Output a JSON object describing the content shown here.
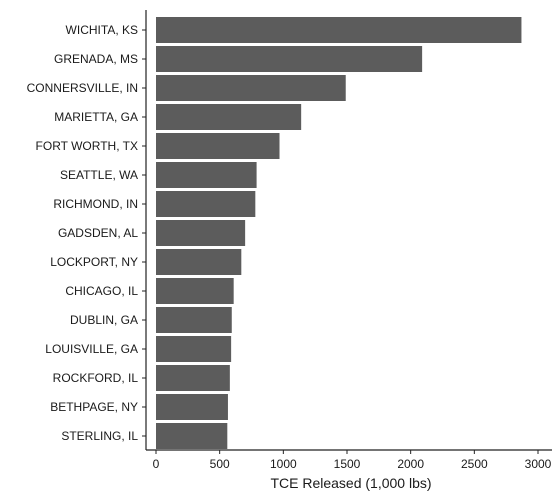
{
  "chart_data": {
    "type": "bar",
    "orientation": "horizontal",
    "title": "",
    "xlabel": "TCE Released (1,000 lbs)",
    "ylabel": "",
    "categories": [
      "WICHITA, KS",
      "GRENADA, MS",
      "CONNERSVILLE, IN",
      "MARIETTA, GA",
      "FORT WORTH, TX",
      "SEATTLE, WA",
      "RICHMOND, IN",
      "GADSDEN, AL",
      "LOCKPORT, NY",
      "CHICAGO, IL",
      "DUBLIN, GA",
      "LOUISVILLE, GA",
      "ROCKFORD, IL",
      "BETHPAGE, NY",
      "STERLING, IL"
    ],
    "values": [
      2870,
      2090,
      1490,
      1140,
      970,
      790,
      780,
      700,
      670,
      610,
      595,
      590,
      580,
      565,
      560
    ],
    "xlim": [
      0,
      3000
    ],
    "xticks": [
      0,
      500,
      1000,
      1500,
      2000,
      2500,
      3000
    ],
    "grid": false,
    "legend": "none",
    "colors": {
      "bar": "#5c5c5c",
      "axis": "#222222"
    }
  }
}
